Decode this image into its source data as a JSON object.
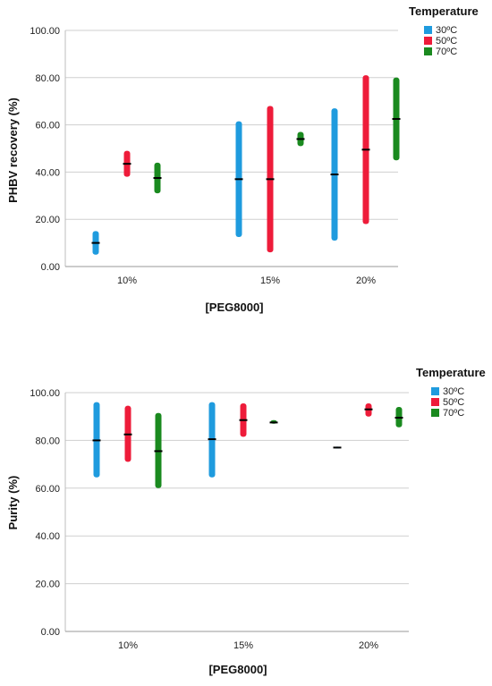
{
  "chart_data": [
    {
      "type": "range-bar",
      "xlabel": "[PEG8000]",
      "ylabel": "PHBV recovery (%)",
      "categories": [
        "10%",
        "15%",
        "20%"
      ],
      "ylim": [
        0,
        100
      ],
      "yticks": [
        "0.00",
        "20.00",
        "40.00",
        "60.00",
        "80.00",
        "100.00"
      ],
      "grid": true,
      "legend": {
        "title": "Temperature",
        "position": "top-right",
        "entries": [
          "30ºC",
          "50ºC",
          "70ºC"
        ]
      },
      "series": [
        {
          "name": "30ºC",
          "color": "#1f9bde",
          "values": [
            {
              "min": 5,
              "max": 15,
              "median": 10
            },
            {
              "min": 12.5,
              "max": 61.5,
              "median": 37
            },
            {
              "min": 11,
              "max": 67,
              "median": 39
            }
          ]
        },
        {
          "name": "50ºC",
          "color": "#ee1c3a",
          "values": [
            {
              "min": 38,
              "max": 49,
              "median": 43.5
            },
            {
              "min": 6,
              "max": 68,
              "median": 37
            },
            {
              "min": 18,
              "max": 81,
              "median": 49.5
            }
          ]
        },
        {
          "name": "70ºC",
          "color": "#1a8a1f",
          "values": [
            {
              "min": 31,
              "max": 44,
              "median": 37.5
            },
            {
              "min": 51,
              "max": 57,
              "median": 54
            },
            {
              "min": 45,
              "max": 80,
              "median": 62.5
            }
          ]
        }
      ]
    },
    {
      "type": "range-bar",
      "xlabel": "[PEG8000]",
      "ylabel": "Purity (%)",
      "categories": [
        "10%",
        "15%",
        "20%"
      ],
      "ylim": [
        0,
        100
      ],
      "yticks": [
        "0.00",
        "20.00",
        "40.00",
        "60.00",
        "80.00",
        "100.00"
      ],
      "grid": true,
      "legend": {
        "title": "Temperature",
        "position": "top-right",
        "entries": [
          "30ºC",
          "50ºC",
          "70ºC"
        ]
      },
      "series": [
        {
          "name": "30ºC",
          "color": "#1f9bde",
          "values": [
            {
              "min": 64.5,
              "max": 96,
              "median": 80
            },
            {
              "min": 64.5,
              "max": 96,
              "median": 80.5
            },
            {
              "min": 77,
              "max": 77,
              "median": 77
            }
          ]
        },
        {
          "name": "50ºC",
          "color": "#ee1c3a",
          "values": [
            {
              "min": 71,
              "max": 94.5,
              "median": 82.5
            },
            {
              "min": 81.5,
              "max": 95.5,
              "median": 88.5
            },
            {
              "min": 90,
              "max": 95.5,
              "median": 93
            }
          ]
        },
        {
          "name": "70ºC",
          "color": "#1a8a1f",
          "values": [
            {
              "min": 60,
              "max": 91.5,
              "median": 75.5
            },
            {
              "min": 87,
              "max": 88.5,
              "median": 87.5
            },
            {
              "min": 85.5,
              "max": 94,
              "median": 89.5
            }
          ]
        }
      ]
    }
  ]
}
